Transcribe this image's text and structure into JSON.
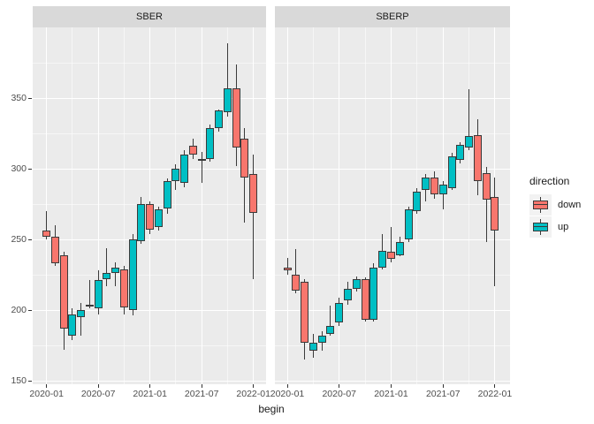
{
  "chart_data": {
    "type": "candlestick",
    "xlabel": "begin",
    "x_ticks": [
      "2020-01",
      "2020-07",
      "2021-01",
      "2021-07",
      "2022-01"
    ],
    "y_ticks": [
      350,
      300,
      250,
      200,
      150
    ],
    "ylim": [
      147.5,
      400
    ],
    "grid": "on",
    "legend": {
      "title": "direction",
      "position": "right",
      "items": [
        {
          "label": "down",
          "color": "#F8766D"
        },
        {
          "label": "up",
          "color": "#00BFC4"
        }
      ]
    },
    "months": [
      "2020-01",
      "2020-02",
      "2020-03",
      "2020-04",
      "2020-05",
      "2020-06",
      "2020-07",
      "2020-08",
      "2020-09",
      "2020-10",
      "2020-11",
      "2020-12",
      "2021-01",
      "2021-02",
      "2021-03",
      "2021-04",
      "2021-05",
      "2021-06",
      "2021-07",
      "2021-08",
      "2021-09",
      "2021-10",
      "2021-11",
      "2021-12",
      "2022-01"
    ],
    "ohlc_order": [
      "open",
      "high",
      "low",
      "close"
    ],
    "facets": [
      {
        "label": "SBER",
        "ohlc": [
          [
            256,
            270,
            250,
            252
          ],
          [
            252,
            260,
            231,
            233
          ],
          [
            239,
            241,
            172,
            187
          ],
          [
            182,
            201,
            179,
            197
          ],
          [
            195,
            205,
            182,
            200
          ],
          [
            204,
            221,
            201,
            203
          ],
          [
            201,
            228,
            197,
            221
          ],
          [
            222,
            244,
            217,
            226
          ],
          [
            226,
            234,
            217,
            230
          ],
          [
            229,
            231,
            197,
            202
          ],
          [
            200,
            254,
            196,
            250
          ],
          [
            249,
            280,
            247,
            275
          ],
          [
            275,
            277,
            254,
            257
          ],
          [
            259,
            273,
            256,
            271
          ],
          [
            272,
            293,
            268,
            291
          ],
          [
            291,
            303,
            285,
            300
          ],
          [
            290,
            313,
            287,
            310
          ],
          [
            316,
            321,
            307,
            310
          ],
          [
            307,
            312,
            290,
            306
          ],
          [
            307,
            331,
            305,
            329
          ],
          [
            329,
            342,
            326,
            341
          ],
          [
            340,
            389,
            337,
            357
          ],
          [
            357,
            374,
            302,
            315
          ],
          [
            321,
            329,
            262,
            294
          ],
          [
            296,
            310,
            222,
            269
          ]
        ]
      },
      {
        "label": "SBERP",
        "ohlc": [
          [
            230,
            237,
            225,
            228
          ],
          [
            225,
            243,
            212,
            214
          ],
          [
            220,
            222,
            165,
            177
          ],
          [
            171,
            183,
            166,
            177
          ],
          [
            177,
            185,
            171,
            182
          ],
          [
            183,
            203,
            182,
            189
          ],
          [
            191,
            209,
            189,
            205
          ],
          [
            207,
            220,
            204,
            215
          ],
          [
            215,
            224,
            213,
            222
          ],
          [
            222,
            223,
            192,
            193
          ],
          [
            193,
            233,
            192,
            230
          ],
          [
            230,
            254,
            229,
            242
          ],
          [
            241,
            259,
            234,
            236
          ],
          [
            239,
            252,
            238,
            248
          ],
          [
            250,
            273,
            248,
            271
          ],
          [
            270,
            286,
            268,
            284
          ],
          [
            285,
            296,
            277,
            294
          ],
          [
            294,
            298,
            279,
            282
          ],
          [
            282,
            291,
            271,
            289
          ],
          [
            286,
            311,
            285,
            309
          ],
          [
            306,
            319,
            304,
            317
          ],
          [
            315,
            356,
            313,
            323
          ],
          [
            324,
            335,
            281,
            291
          ],
          [
            297,
            301,
            248,
            278
          ],
          [
            280,
            294,
            217,
            256
          ]
        ]
      }
    ]
  }
}
